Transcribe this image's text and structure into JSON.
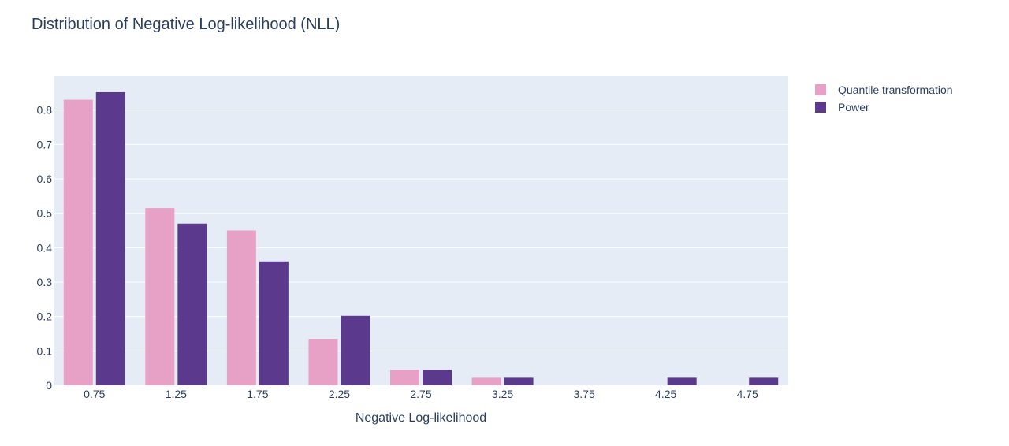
{
  "chart_data": {
    "type": "bar",
    "title": "Distribution of Negative Log-likelihood (NLL)",
    "xlabel": "Negative Log-likelihood",
    "ylabel": "",
    "categories": [
      "0.75",
      "1.25",
      "1.75",
      "2.25",
      "2.75",
      "3.25",
      "3.75",
      "4.25",
      "4.75"
    ],
    "ylim": [
      0,
      0.9
    ],
    "yticks": [
      0,
      0.1,
      0.2,
      0.3,
      0.4,
      0.5,
      0.6,
      0.7,
      0.8
    ],
    "ytick_labels": [
      "0",
      "0.1",
      "0.2",
      "0.3",
      "0.4",
      "0.5",
      "0.6",
      "0.7",
      "0.8"
    ],
    "grid": true,
    "legend_position": "top-right outside",
    "plot_background": "#e5ecf6",
    "series": [
      {
        "name": "Quantile transformation",
        "color": "#e7a0c6",
        "values": [
          0.83,
          0.515,
          0.45,
          0.135,
          0.045,
          0.022,
          0,
          0,
          0
        ]
      },
      {
        "name": "Power",
        "color": "#5b3a8d",
        "values": [
          0.852,
          0.47,
          0.36,
          0.202,
          0.045,
          0.022,
          0,
          0.022,
          0.022
        ]
      }
    ]
  }
}
